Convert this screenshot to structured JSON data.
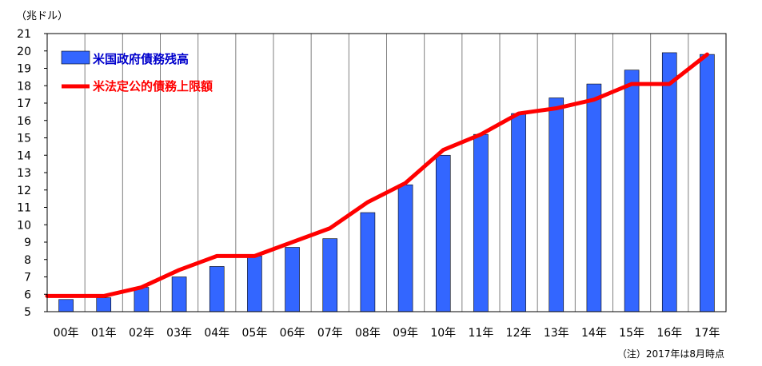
{
  "chart_data": {
    "type": "bar",
    "unit_label": "（兆ドル）",
    "note": "（注）2017年は8月時点",
    "categories": [
      "00年",
      "01年",
      "02年",
      "03年",
      "04年",
      "05年",
      "06年",
      "07年",
      "08年",
      "09年",
      "10年",
      "11年",
      "12年",
      "13年",
      "14年",
      "15年",
      "16年",
      "17年"
    ],
    "ylim": [
      5,
      21
    ],
    "yticks": [
      5,
      6,
      7,
      8,
      9,
      10,
      11,
      12,
      13,
      14,
      15,
      16,
      17,
      18,
      19,
      20,
      21
    ],
    "grid": "vertical",
    "legend_position": "top-left",
    "series": [
      {
        "name": "米国政府債務残高",
        "type": "bar",
        "color": "#3366ff",
        "values": [
          5.7,
          5.8,
          6.4,
          7.0,
          7.6,
          8.2,
          8.7,
          9.2,
          10.7,
          12.3,
          14.0,
          15.2,
          16.4,
          17.3,
          18.1,
          18.9,
          19.9,
          19.8
        ]
      },
      {
        "name": "米法定公的債務上限額",
        "type": "line",
        "color": "#ff0000",
        "values": [
          5.9,
          5.9,
          6.4,
          7.4,
          8.2,
          8.2,
          9.0,
          9.8,
          11.3,
          12.4,
          14.3,
          15.2,
          16.4,
          16.7,
          17.2,
          18.1,
          18.1,
          19.8
        ]
      }
    ]
  }
}
